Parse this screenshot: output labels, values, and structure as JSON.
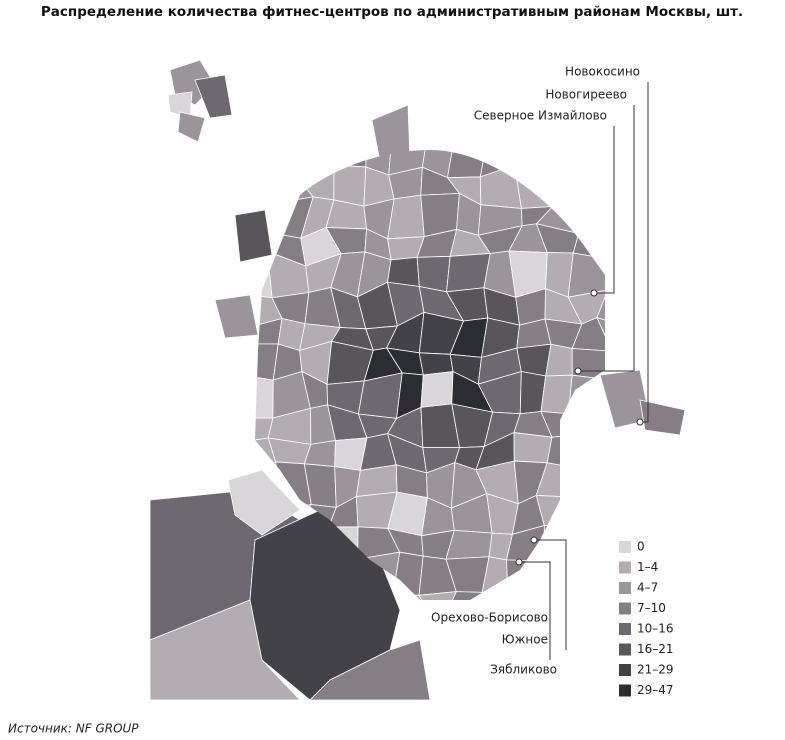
{
  "title": "Распределение количества фитнес-центров по административным районам Москвы, шт.",
  "legend": [
    {
      "label": "0",
      "color": "#d9d6d9"
    },
    {
      "label": "1–4",
      "color": "#b3adb2"
    },
    {
      "label": "4–7",
      "color": "#9b949a"
    },
    {
      "label": "7–10",
      "color": "#857e85"
    },
    {
      "label": "10–16",
      "color": "#6e6970"
    },
    {
      "label": "16–21",
      "color": "#58555b"
    },
    {
      "label": "21–29",
      "color": "#434248"
    },
    {
      "label": "29–47",
      "color": "#2c2c33"
    }
  ],
  "callouts": [
    {
      "lines": [
        "Новокосино"
      ]
    },
    {
      "lines": [
        "Новогиреево"
      ]
    },
    {
      "lines": [
        "Северное Измайлово"
      ]
    },
    {
      "lines": [
        "Орехово-Борисово",
        "Южное"
      ]
    },
    {
      "lines": [
        "Зябликово"
      ]
    }
  ],
  "source": "Источник: NF GROUP"
}
